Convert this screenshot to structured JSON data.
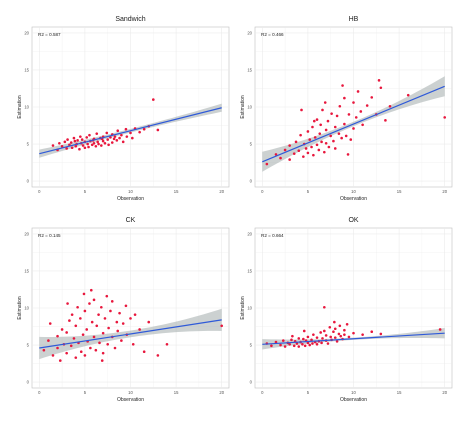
{
  "chart_data": [
    {
      "type": "scatter",
      "title": "Sandwich",
      "annotation": "R2 = 0.587",
      "xlabel": "Observation",
      "ylabel": "Estimation",
      "xlim": [
        0,
        20
      ],
      "ylim": [
        0,
        20
      ],
      "xticks": [
        "0",
        "5",
        "10",
        "15",
        "20"
      ],
      "yticks": [
        "0",
        "5",
        "10",
        "15",
        "20"
      ],
      "grid": true,
      "points": [
        [
          1.5,
          4.8
        ],
        [
          2,
          4.2
        ],
        [
          2.2,
          5.1
        ],
        [
          2.5,
          4.7
        ],
        [
          2.8,
          5.3
        ],
        [
          3,
          4.4
        ],
        [
          3.1,
          5.6
        ],
        [
          3.3,
          4.9
        ],
        [
          3.5,
          5.2
        ],
        [
          3.6,
          4.5
        ],
        [
          3.8,
          5.8
        ],
        [
          4,
          4.7
        ],
        [
          4.1,
          5.0
        ],
        [
          4.2,
          5.5
        ],
        [
          4.4,
          4.3
        ],
        [
          4.5,
          6.0
        ],
        [
          4.6,
          5.1
        ],
        [
          4.8,
          4.8
        ],
        [
          5,
          5.3
        ],
        [
          5,
          4.5
        ],
        [
          5.2,
          5.9
        ],
        [
          5.3,
          5.0
        ],
        [
          5.4,
          4.6
        ],
        [
          5.5,
          6.2
        ],
        [
          5.6,
          5.4
        ],
        [
          5.8,
          4.9
        ],
        [
          6,
          5.7
        ],
        [
          6,
          5.1
        ],
        [
          6.2,
          4.7
        ],
        [
          6.3,
          6.4
        ],
        [
          6.4,
          5.3
        ],
        [
          6.5,
          5.0
        ],
        [
          6.7,
          5.8
        ],
        [
          6.8,
          4.8
        ],
        [
          7,
          6.0
        ],
        [
          7,
          5.4
        ],
        [
          7.2,
          5.1
        ],
        [
          7.4,
          6.5
        ],
        [
          7.5,
          5.6
        ],
        [
          7.6,
          4.9
        ],
        [
          7.8,
          5.9
        ],
        [
          8,
          6.3
        ],
        [
          8,
          5.2
        ],
        [
          8.3,
          6.0
        ],
        [
          8.5,
          5.5
        ],
        [
          8.6,
          6.8
        ],
        [
          8.8,
          5.8
        ],
        [
          9,
          6.2
        ],
        [
          9.2,
          5.3
        ],
        [
          9.5,
          7.0
        ],
        [
          9.6,
          6.0
        ],
        [
          10,
          6.5
        ],
        [
          10.2,
          5.8
        ],
        [
          10.5,
          7.1
        ],
        [
          11,
          6.6
        ],
        [
          11.5,
          7.0
        ],
        [
          12,
          7.4
        ],
        [
          12.5,
          11.0
        ],
        [
          13,
          6.9
        ],
        [
          4.7,
          5.6
        ],
        [
          5.9,
          5.5
        ],
        [
          6.9,
          5.7
        ],
        [
          3.9,
          5.4
        ],
        [
          8.2,
          5.7
        ]
      ],
      "fit": {
        "intercept": 3.7,
        "slope": 0.31,
        "band": [
          0.25,
          0.55
        ]
      }
    },
    {
      "type": "scatter",
      "title": "HB",
      "annotation": "R2 = 0.466",
      "xlabel": "Observation",
      "ylabel": "Estimation",
      "xlim": [
        0,
        20
      ],
      "ylim": [
        0,
        20
      ],
      "xticks": [
        "0",
        "5",
        "10",
        "15",
        "20"
      ],
      "yticks": [
        "0",
        "5",
        "10",
        "15",
        "20"
      ],
      "grid": true,
      "points": [
        [
          0.5,
          2.3
        ],
        [
          1.5,
          3.6
        ],
        [
          2,
          3.1
        ],
        [
          2.5,
          4.2
        ],
        [
          3,
          2.9
        ],
        [
          3,
          4.8
        ],
        [
          3.5,
          3.7
        ],
        [
          3.7,
          5.3
        ],
        [
          4,
          4.1
        ],
        [
          4.2,
          6.2
        ],
        [
          4.5,
          3.3
        ],
        [
          4.6,
          5.0
        ],
        [
          4.8,
          4.4
        ],
        [
          5,
          6.7
        ],
        [
          5,
          3.8
        ],
        [
          5.2,
          5.6
        ],
        [
          5.4,
          4.6
        ],
        [
          5.5,
          7.3
        ],
        [
          5.6,
          3.5
        ],
        [
          5.8,
          5.9
        ],
        [
          6,
          4.9
        ],
        [
          6,
          8.3
        ],
        [
          6.2,
          4.2
        ],
        [
          6.3,
          6.4
        ],
        [
          6.5,
          5.3
        ],
        [
          6.6,
          9.6
        ],
        [
          6.8,
          3.9
        ],
        [
          7,
          6.9
        ],
        [
          7,
          5.1
        ],
        [
          7.2,
          8.1
        ],
        [
          7.3,
          4.6
        ],
        [
          7.5,
          6.1
        ],
        [
          7.6,
          9.1
        ],
        [
          7.8,
          5.4
        ],
        [
          8,
          7.3
        ],
        [
          8,
          4.4
        ],
        [
          8.2,
          8.8
        ],
        [
          8.4,
          6.4
        ],
        [
          8.5,
          10.1
        ],
        [
          8.7,
          5.8
        ],
        [
          9,
          7.7
        ],
        [
          9,
          11.2
        ],
        [
          9.2,
          6.1
        ],
        [
          9.5,
          9.0
        ],
        [
          9.7,
          5.6
        ],
        [
          10,
          10.6
        ],
        [
          10,
          7.1
        ],
        [
          10.3,
          8.6
        ],
        [
          10.5,
          12.1
        ],
        [
          10.8,
          9.4
        ],
        [
          11,
          7.6
        ],
        [
          11.5,
          10.2
        ],
        [
          12,
          11.3
        ],
        [
          12.5,
          9.0
        ],
        [
          12.8,
          13.6
        ],
        [
          13,
          12.6
        ],
        [
          13.5,
          8.2
        ],
        [
          14,
          10.1
        ],
        [
          16,
          11.6
        ],
        [
          20,
          8.6
        ],
        [
          6.9,
          10.6
        ],
        [
          5.7,
          8.1
        ],
        [
          8.8,
          12.9
        ],
        [
          4.3,
          9.6
        ],
        [
          9.4,
          3.6
        ],
        [
          6.4,
          7.6
        ]
      ],
      "fit": {
        "intercept": 2.6,
        "slope": 0.51,
        "band": [
          0.3,
          1.35
        ]
      }
    },
    {
      "type": "scatter",
      "title": "CK",
      "annotation": "R2 = 0.145",
      "xlabel": "Observation",
      "ylabel": "Estimation",
      "xlim": [
        0,
        20
      ],
      "ylim": [
        0,
        20
      ],
      "xticks": [
        "0",
        "5",
        "10",
        "15",
        "20"
      ],
      "yticks": [
        "0",
        "5",
        "10",
        "15",
        "20"
      ],
      "grid": true,
      "points": [
        [
          0.5,
          4.3
        ],
        [
          1,
          5.6
        ],
        [
          1.5,
          3.6
        ],
        [
          2,
          6.2
        ],
        [
          2,
          4.6
        ],
        [
          2.5,
          7.1
        ],
        [
          2.7,
          5.1
        ],
        [
          3,
          3.9
        ],
        [
          3,
          6.7
        ],
        [
          3.3,
          8.3
        ],
        [
          3.5,
          4.9
        ],
        [
          3.6,
          9.1
        ],
        [
          3.8,
          5.9
        ],
        [
          4,
          3.3
        ],
        [
          4,
          7.6
        ],
        [
          4.2,
          10.1
        ],
        [
          4.3,
          5.3
        ],
        [
          4.5,
          8.6
        ],
        [
          4.6,
          4.1
        ],
        [
          4.8,
          6.4
        ],
        [
          5,
          9.6
        ],
        [
          5,
          3.6
        ],
        [
          5.2,
          7.1
        ],
        [
          5.3,
          5.5
        ],
        [
          5.5,
          10.6
        ],
        [
          5.6,
          4.6
        ],
        [
          5.8,
          8.1
        ],
        [
          6,
          6.1
        ],
        [
          6,
          11.1
        ],
        [
          6.2,
          4.3
        ],
        [
          6.3,
          7.6
        ],
        [
          6.5,
          9.1
        ],
        [
          6.6,
          5.3
        ],
        [
          6.8,
          10.1
        ],
        [
          7,
          6.6
        ],
        [
          7,
          3.9
        ],
        [
          7.2,
          8.6
        ],
        [
          7.4,
          11.6
        ],
        [
          7.5,
          5.1
        ],
        [
          7.6,
          7.3
        ],
        [
          7.8,
          9.6
        ],
        [
          8,
          6.1
        ],
        [
          8,
          10.9
        ],
        [
          8.3,
          4.6
        ],
        [
          8.5,
          8.1
        ],
        [
          8.6,
          6.9
        ],
        [
          8.8,
          9.3
        ],
        [
          9,
          5.6
        ],
        [
          9.2,
          7.9
        ],
        [
          9.5,
          10.3
        ],
        [
          9.6,
          6.4
        ],
        [
          10,
          8.6
        ],
        [
          10.3,
          5.1
        ],
        [
          10.5,
          9.1
        ],
        [
          11,
          7.1
        ],
        [
          11.5,
          4.1
        ],
        [
          12,
          8.1
        ],
        [
          13,
          3.6
        ],
        [
          14,
          5.1
        ],
        [
          20,
          7.6
        ],
        [
          1.2,
          7.9
        ],
        [
          2.3,
          2.9
        ],
        [
          4.9,
          11.9
        ],
        [
          6.9,
          2.9
        ],
        [
          3.1,
          10.6
        ],
        [
          5.7,
          12.4
        ]
      ],
      "fit": {
        "intercept": 4.6,
        "slope": 0.19,
        "band": [
          0.45,
          1.5
        ]
      }
    },
    {
      "type": "scatter",
      "title": "OK",
      "annotation": "R2 = 0.664",
      "xlabel": "Observation",
      "ylabel": "Estimation",
      "xlim": [
        0,
        20
      ],
      "ylim": [
        0,
        20
      ],
      "xticks": [
        "0",
        "5",
        "10",
        "15",
        "20"
      ],
      "yticks": [
        "0",
        "5",
        "10",
        "15",
        "20"
      ],
      "grid": true,
      "points": [
        [
          0.5,
          5.2
        ],
        [
          1,
          4.9
        ],
        [
          1.5,
          5.4
        ],
        [
          2,
          5.0
        ],
        [
          2.3,
          5.6
        ],
        [
          2.5,
          4.8
        ],
        [
          2.8,
          5.3
        ],
        [
          3,
          5.1
        ],
        [
          3.2,
          5.7
        ],
        [
          3.5,
          4.9
        ],
        [
          3.6,
          5.5
        ],
        [
          3.8,
          5.2
        ],
        [
          4,
          5.9
        ],
        [
          4,
          4.8
        ],
        [
          4.2,
          5.4
        ],
        [
          4.4,
          5.1
        ],
        [
          4.5,
          5.8
        ],
        [
          4.7,
          4.9
        ],
        [
          4.8,
          5.6
        ],
        [
          5,
          5.3
        ],
        [
          5,
          6.1
        ],
        [
          5.2,
          5.0
        ],
        [
          5.4,
          5.7
        ],
        [
          5.5,
          5.2
        ],
        [
          5.6,
          6.4
        ],
        [
          5.8,
          5.4
        ],
        [
          6,
          5.1
        ],
        [
          6,
          6.0
        ],
        [
          6.2,
          5.5
        ],
        [
          6.4,
          6.7
        ],
        [
          6.5,
          5.3
        ],
        [
          6.6,
          5.9
        ],
        [
          6.8,
          6.9
        ],
        [
          7,
          5.6
        ],
        [
          7,
          6.3
        ],
        [
          7.2,
          5.2
        ],
        [
          7.4,
          7.4
        ],
        [
          7.5,
          6.1
        ],
        [
          7.6,
          5.7
        ],
        [
          7.8,
          6.8
        ],
        [
          8,
          6.0
        ],
        [
          8,
          7.2
        ],
        [
          8.2,
          5.5
        ],
        [
          8.4,
          6.5
        ],
        [
          8.5,
          7.6
        ],
        [
          8.6,
          6.2
        ],
        [
          8.8,
          5.8
        ],
        [
          9,
          7.0
        ],
        [
          9,
          6.4
        ],
        [
          9.3,
          7.8
        ],
        [
          9.5,
          6.1
        ],
        [
          10,
          6.6
        ],
        [
          11,
          6.4
        ],
        [
          12,
          6.8
        ],
        [
          13,
          6.5
        ],
        [
          19.5,
          7.1
        ],
        [
          6.8,
          10.1
        ],
        [
          3.3,
          6.2
        ],
        [
          7.9,
          8.1
        ],
        [
          4.6,
          6.9
        ]
      ],
      "fit": {
        "intercept": 5.1,
        "slope": 0.075,
        "band": [
          0.15,
          0.7
        ]
      }
    }
  ]
}
